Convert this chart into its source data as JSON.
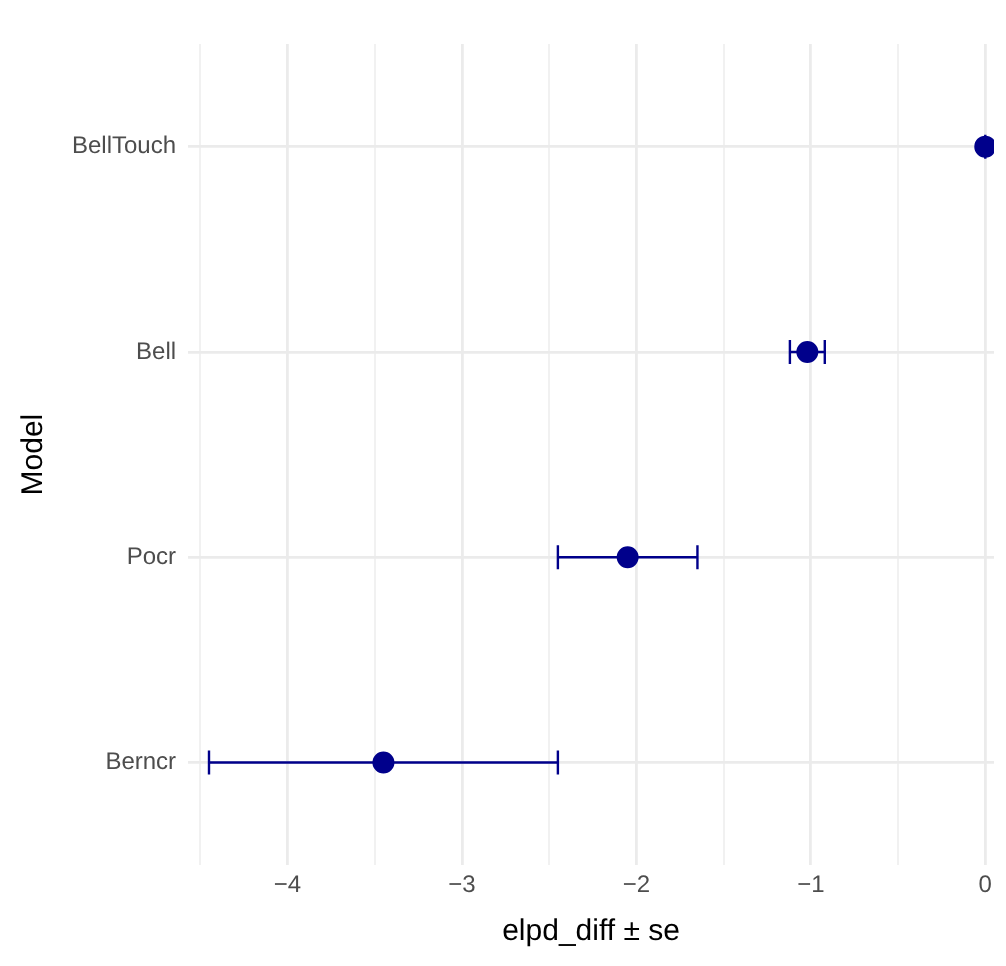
{
  "chart_data": {
    "type": "scatter",
    "orientation": "horizontal",
    "xlabel": "elpd_diff ± se",
    "ylabel": "Model",
    "categories": [
      "BellTouch",
      "Bell",
      "Pocr",
      "Berncr"
    ],
    "series": [
      {
        "color": "#00008b",
        "values": [
          0,
          -1.02,
          -2.05,
          -3.45
        ],
        "errors": [
          0,
          0.1,
          0.4,
          1.0
        ]
      }
    ],
    "xlim": [
      -4.57,
      0.05
    ],
    "xticks": [
      {
        "value": -4.5,
        "label": null
      },
      {
        "value": -4,
        "label": "−4"
      },
      {
        "value": -3.5,
        "label": null
      },
      {
        "value": -3,
        "label": "−3"
      },
      {
        "value": -2.5,
        "label": null
      },
      {
        "value": -2,
        "label": "−2"
      },
      {
        "value": -1.5,
        "label": null
      },
      {
        "value": -1,
        "label": "−1"
      },
      {
        "value": -0.5,
        "label": null
      },
      {
        "value": 0,
        "label": "0"
      }
    ],
    "grid": true,
    "legend": false,
    "marker": "circle"
  }
}
